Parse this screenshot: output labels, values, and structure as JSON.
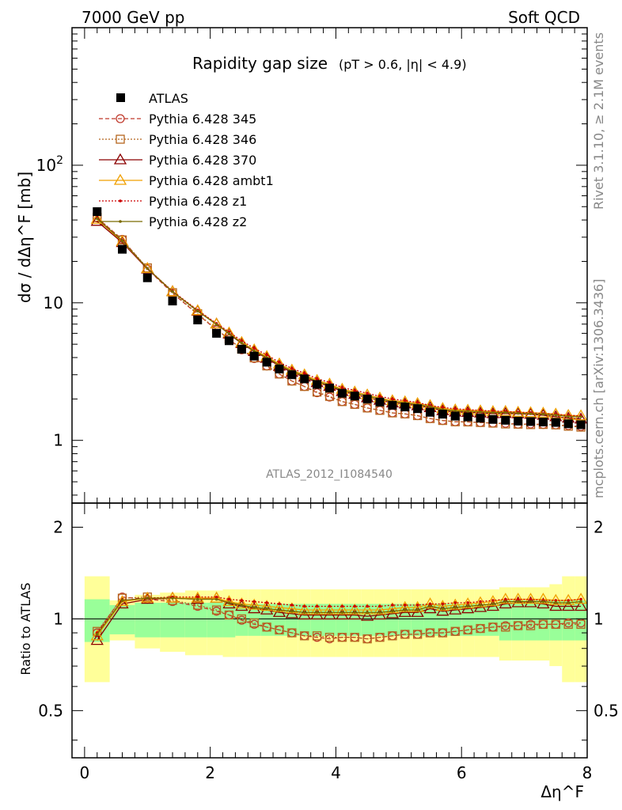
{
  "header": {
    "left": "7000 GeV pp",
    "right": "Soft QCD"
  },
  "side_labels": {
    "rivet": "Rivet 3.1.10, ≥ 2.1M events",
    "mcplots": "mcplots.cern.ch [arXiv:1306.3436]"
  },
  "watermark": "ATLAS_2012_I1084540",
  "chart_data": {
    "type": "scatter",
    "title": "Rapidity gap size",
    "title_cuts": "(pT > 0.6, |η| < 4.9)",
    "ylabel": "dσ / dΔη^F [mb]",
    "ratio_ylabel": "Ratio to ATLAS",
    "xlabel": "Δη^F",
    "xlim": [
      -0.2,
      8.0
    ],
    "ylim": [
      0.35,
      1000
    ],
    "y_log": true,
    "ratio_ylim": [
      0.35,
      2.4
    ],
    "ratio_log": true,
    "x_ticks": [
      "0",
      "2",
      "4",
      "6",
      "8"
    ],
    "y_ticks": [
      "1",
      "10",
      "10^2"
    ],
    "ratio_ticks": [
      "0.5",
      "1",
      "2"
    ],
    "legend_position": "top-left",
    "x": [
      0.2,
      0.6,
      1.0,
      1.4,
      1.8,
      2.1,
      2.3,
      2.5,
      2.7,
      2.9,
      3.1,
      3.3,
      3.5,
      3.7,
      3.9,
      4.1,
      4.3,
      4.5,
      4.7,
      4.9,
      5.1,
      5.3,
      5.5,
      5.7,
      5.9,
      6.1,
      6.3,
      6.5,
      6.7,
      6.9,
      7.1,
      7.3,
      7.5,
      7.7,
      7.9
    ],
    "data": {
      "name": "ATLAS",
      "values": [
        46,
        24.5,
        15.2,
        10.3,
        7.5,
        6.0,
        5.3,
        4.6,
        4.1,
        3.7,
        3.3,
        3.0,
        2.8,
        2.55,
        2.4,
        2.2,
        2.1,
        2.0,
        1.9,
        1.8,
        1.75,
        1.7,
        1.6,
        1.55,
        1.5,
        1.48,
        1.45,
        1.42,
        1.4,
        1.38,
        1.37,
        1.36,
        1.35,
        1.32,
        1.3
      ],
      "band_inner": [
        0.16,
        0.11,
        0.13,
        0.13,
        0.13,
        0.13,
        0.13,
        0.12,
        0.12,
        0.12,
        0.12,
        0.12,
        0.12,
        0.12,
        0.12,
        0.12,
        0.12,
        0.12,
        0.12,
        0.12,
        0.12,
        0.12,
        0.12,
        0.12,
        0.12,
        0.12,
        0.12,
        0.12,
        0.15,
        0.15,
        0.15,
        0.15,
        0.15,
        0.15,
        0.15
      ],
      "band_outer": [
        0.38,
        0.15,
        0.2,
        0.22,
        0.24,
        0.24,
        0.25,
        0.25,
        0.25,
        0.25,
        0.25,
        0.25,
        0.25,
        0.25,
        0.25,
        0.25,
        0.25,
        0.25,
        0.25,
        0.25,
        0.25,
        0.25,
        0.25,
        0.25,
        0.25,
        0.25,
        0.25,
        0.25,
        0.27,
        0.27,
        0.27,
        0.27,
        0.3,
        0.38,
        0.38
      ]
    },
    "series": [
      {
        "name": "Pythia 6.428 345",
        "color": "#c0392b",
        "marker": "circle",
        "line": "dashed",
        "ratio": [
          0.9,
          1.18,
          1.16,
          1.14,
          1.1,
          1.06,
          1.03,
          0.99,
          0.96,
          0.94,
          0.92,
          0.9,
          0.88,
          0.87,
          0.86,
          0.87,
          0.87,
          0.86,
          0.87,
          0.88,
          0.89,
          0.89,
          0.9,
          0.9,
          0.91,
          0.92,
          0.93,
          0.94,
          0.95,
          0.95,
          0.96,
          0.96,
          0.96,
          0.97,
          0.97
        ]
      },
      {
        "name": "Pythia 6.428 346",
        "color": "#b5651d",
        "marker": "square",
        "line": "dotted",
        "ratio": [
          0.91,
          1.17,
          1.18,
          1.15,
          1.11,
          1.07,
          1.03,
          1.0,
          0.97,
          0.94,
          0.92,
          0.9,
          0.88,
          0.88,
          0.87,
          0.87,
          0.87,
          0.86,
          0.87,
          0.88,
          0.89,
          0.89,
          0.9,
          0.9,
          0.91,
          0.92,
          0.93,
          0.94,
          0.94,
          0.95,
          0.95,
          0.96,
          0.96,
          0.96,
          0.96
        ]
      },
      {
        "name": "Pythia 6.428 370",
        "color": "#8b0000",
        "marker": "triangle",
        "line": "solid",
        "ratio": [
          0.85,
          1.12,
          1.16,
          1.17,
          1.16,
          1.17,
          1.12,
          1.1,
          1.08,
          1.07,
          1.05,
          1.04,
          1.03,
          1.03,
          1.03,
          1.03,
          1.03,
          1.02,
          1.03,
          1.04,
          1.05,
          1.05,
          1.08,
          1.06,
          1.07,
          1.08,
          1.09,
          1.1,
          1.12,
          1.13,
          1.13,
          1.12,
          1.1,
          1.1,
          1.1
        ]
      },
      {
        "name": "Pythia 6.428 ambt1",
        "color": "#f0a000",
        "marker": "triangle-open",
        "line": "solid",
        "ratio": [
          0.88,
          1.14,
          1.17,
          1.17,
          1.17,
          1.17,
          1.14,
          1.12,
          1.11,
          1.1,
          1.09,
          1.08,
          1.07,
          1.07,
          1.07,
          1.07,
          1.07,
          1.07,
          1.07,
          1.08,
          1.09,
          1.09,
          1.12,
          1.1,
          1.11,
          1.12,
          1.13,
          1.14,
          1.16,
          1.16,
          1.16,
          1.16,
          1.15,
          1.15,
          1.16
        ]
      },
      {
        "name": "Pythia 6.428 z1",
        "color": "#cc0000",
        "marker": "dot",
        "line": "dotted",
        "ratio": [
          0.9,
          1.15,
          1.17,
          1.18,
          1.18,
          1.18,
          1.16,
          1.15,
          1.14,
          1.13,
          1.12,
          1.11,
          1.1,
          1.1,
          1.1,
          1.1,
          1.1,
          1.1,
          1.1,
          1.11,
          1.11,
          1.11,
          1.12,
          1.12,
          1.13,
          1.13,
          1.14,
          1.15,
          1.16,
          1.16,
          1.16,
          1.15,
          1.15,
          1.15,
          1.16
        ]
      },
      {
        "name": "Pythia 6.428 z2",
        "color": "#7a6a00",
        "marker": "dot",
        "line": "solid",
        "ratio": [
          0.89,
          1.15,
          1.17,
          1.17,
          1.16,
          1.16,
          1.13,
          1.11,
          1.09,
          1.08,
          1.07,
          1.06,
          1.05,
          1.05,
          1.05,
          1.05,
          1.05,
          1.05,
          1.05,
          1.06,
          1.07,
          1.07,
          1.1,
          1.08,
          1.09,
          1.1,
          1.11,
          1.12,
          1.14,
          1.14,
          1.14,
          1.14,
          1.13,
          1.13,
          1.14
        ]
      }
    ]
  }
}
